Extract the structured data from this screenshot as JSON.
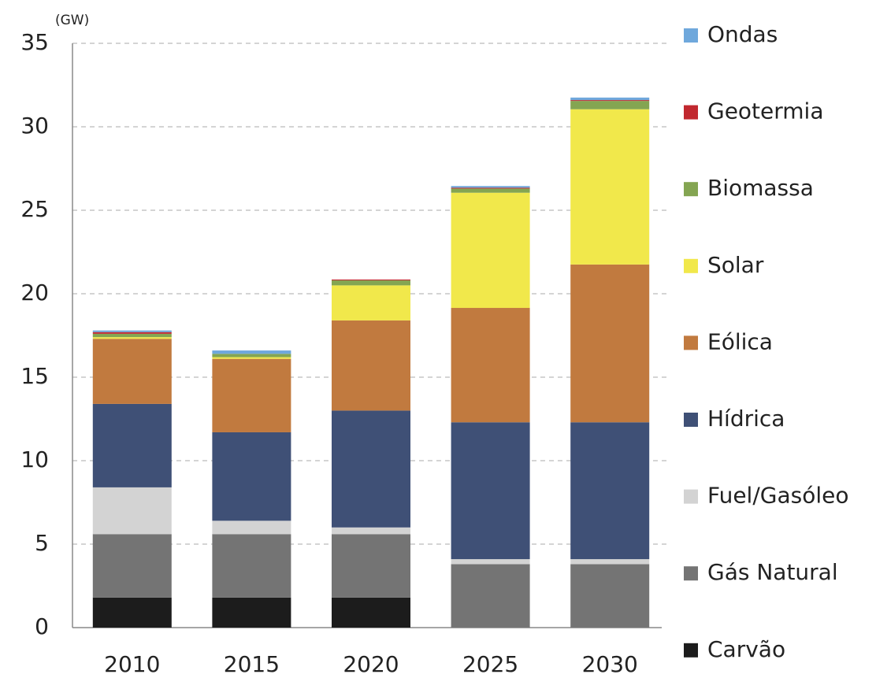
{
  "chart_data": {
    "type": "stacked_bar",
    "y_label": "(GW)",
    "categories": [
      "2010",
      "2015",
      "2020",
      "2025",
      "2030"
    ],
    "series": [
      {
        "name": "Carvão",
        "color": "#1c1c1c",
        "values": [
          1.8,
          1.8,
          1.8,
          0,
          0
        ]
      },
      {
        "name": "Gás Natural",
        "color": "#747474",
        "values": [
          3.8,
          3.8,
          3.8,
          3.8,
          3.8
        ]
      },
      {
        "name": "Fuel/Gasóleo",
        "color": "#d3d3d3",
        "values": [
          2.8,
          0.8,
          0.4,
          0.3,
          0.3
        ]
      },
      {
        "name": "Hídrica",
        "color": "#3f5076",
        "values": [
          5.0,
          5.3,
          7.0,
          8.2,
          8.2
        ]
      },
      {
        "name": "Eólica",
        "color": "#c17a3f",
        "values": [
          3.9,
          4.4,
          5.4,
          6.85,
          9.45
        ]
      },
      {
        "name": "Solar",
        "color": "#f1e84b",
        "values": [
          0.1,
          0.1,
          2.1,
          6.9,
          9.3
        ]
      },
      {
        "name": "Biomassa",
        "color": "#84a552",
        "values": [
          0.2,
          0.2,
          0.3,
          0.25,
          0.5
        ]
      },
      {
        "name": "Geotermia",
        "color": "#c1282f",
        "values": [
          0.1,
          0,
          0.05,
          0.05,
          0.05
        ]
      },
      {
        "name": "Ondas",
        "color": "#6fa8dc",
        "values": [
          0.1,
          0.2,
          0,
          0.1,
          0.15
        ]
      }
    ],
    "ylim": [
      0,
      35
    ],
    "yticks": [
      0,
      5,
      10,
      15,
      20,
      25,
      30,
      35
    ],
    "grid": true,
    "legend": "right"
  }
}
